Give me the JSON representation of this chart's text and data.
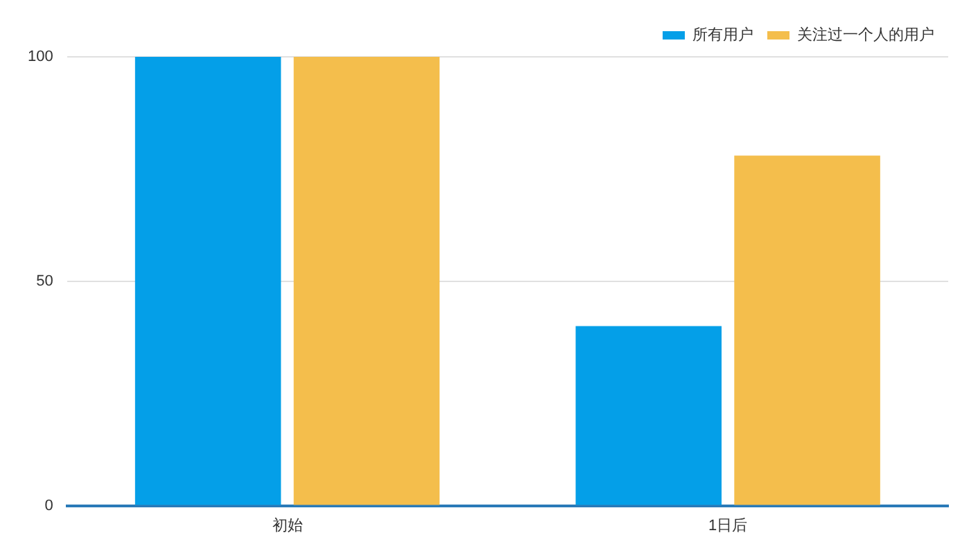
{
  "chart_data": {
    "type": "bar",
    "categories": [
      "初始",
      "1日后"
    ],
    "series": [
      {
        "name": "所有用户",
        "color": "#049fe8",
        "values": [
          100,
          40
        ]
      },
      {
        "name": "关注过一个人的用户",
        "color": "#f4be4c",
        "values": [
          100,
          78
        ]
      }
    ],
    "ylim": [
      0,
      100
    ],
    "yticks": [
      0,
      50,
      100
    ],
    "grid": "y",
    "legend": "top right"
  }
}
